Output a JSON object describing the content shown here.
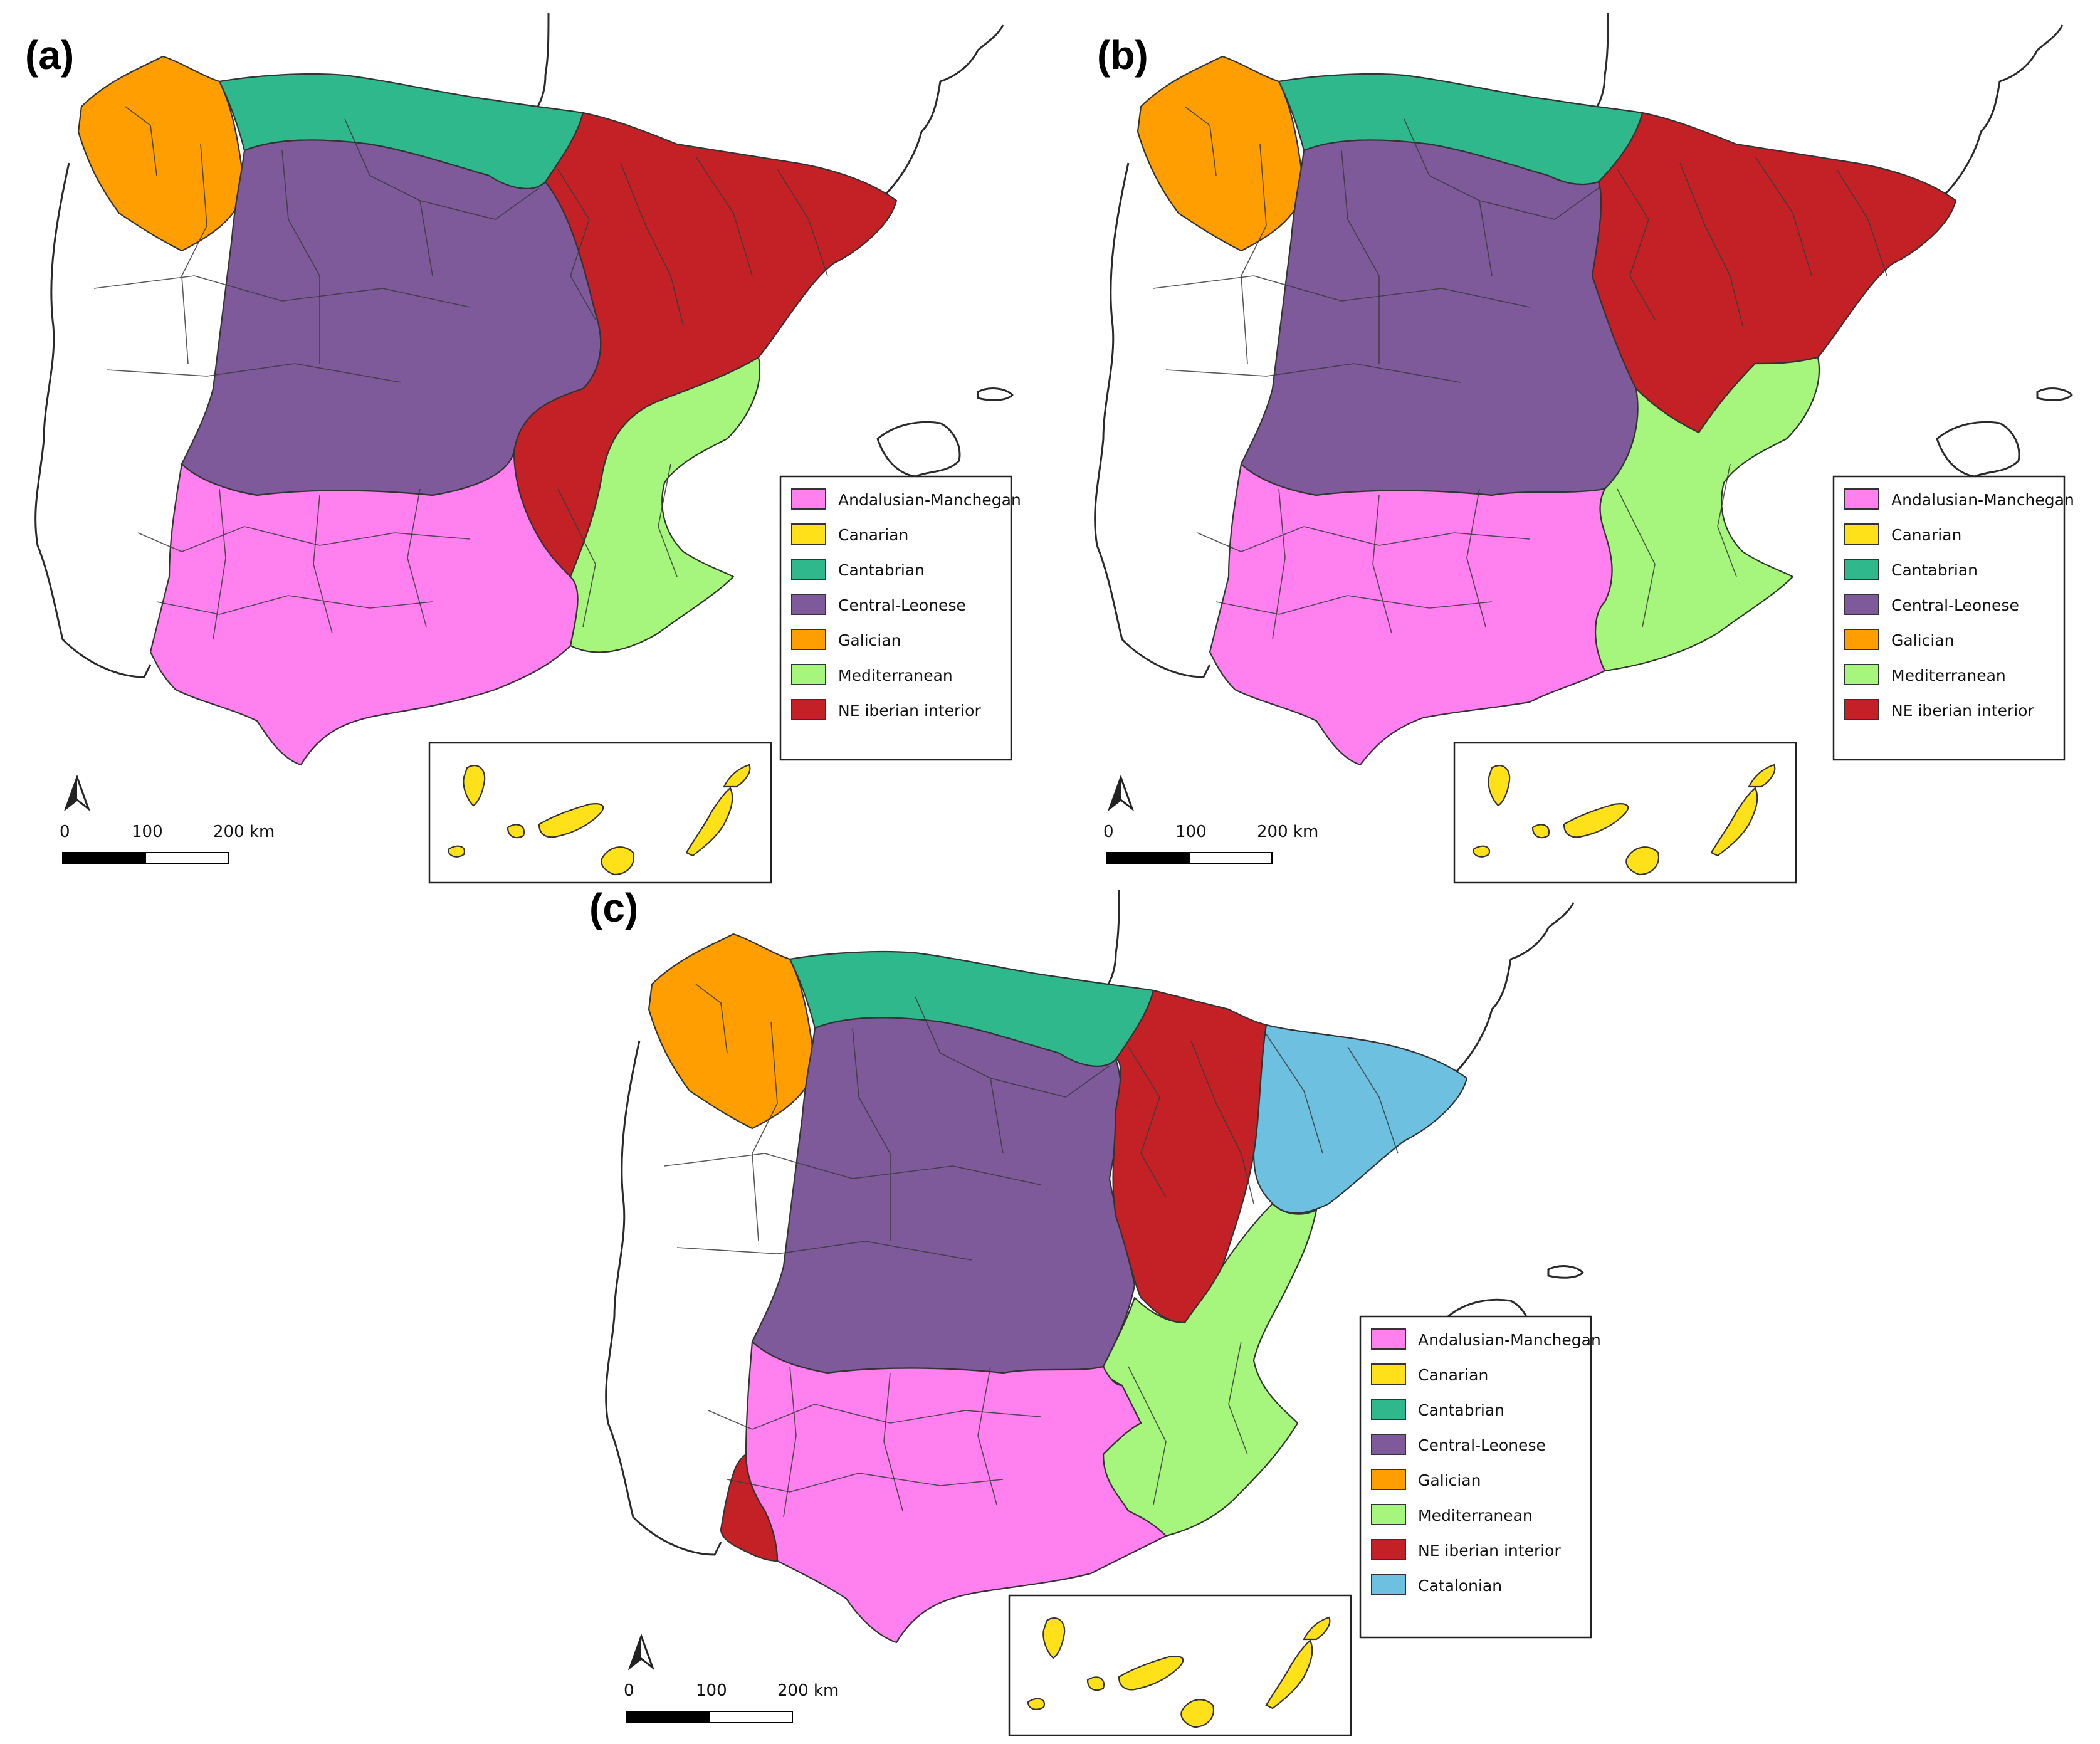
{
  "colors": {
    "Andalusian-Manchegan": "#ff80ee",
    "Canarian": "#ffe11a",
    "Cantabrian": "#2fb88c",
    "Central-Leonese": "#7e5a9b",
    "Galician": "#ff9e00",
    "Mediterranean": "#a6f57d",
    "NE iberian interior": "#c42127",
    "Catalonian": "#6ec0e0"
  },
  "panels": [
    {
      "label": "(a)",
      "legend": [
        "Andalusian-Manchegan",
        "Canarian",
        "Cantabrian",
        "Central-Leonese",
        "Galician",
        "Mediterranean",
        "NE iberian interior"
      ],
      "scale": {
        "tick0": "0",
        "tick1": "100",
        "tick2": "200 km"
      }
    },
    {
      "label": "(b)",
      "legend": [
        "Andalusian-Manchegan",
        "Canarian",
        "Cantabrian",
        "Central-Leonese",
        "Galician",
        "Mediterranean",
        "NE iberian interior"
      ],
      "scale": {
        "tick0": "0",
        "tick1": "100",
        "tick2": "200 km"
      }
    },
    {
      "label": "(c)",
      "legend": [
        "Andalusian-Manchegan",
        "Canarian",
        "Cantabrian",
        "Central-Leonese",
        "Galician",
        "Mediterranean",
        "NE iberian interior",
        "Catalonian"
      ],
      "scale": {
        "tick0": "0",
        "tick1": "100",
        "tick2": "200 km"
      }
    }
  ]
}
